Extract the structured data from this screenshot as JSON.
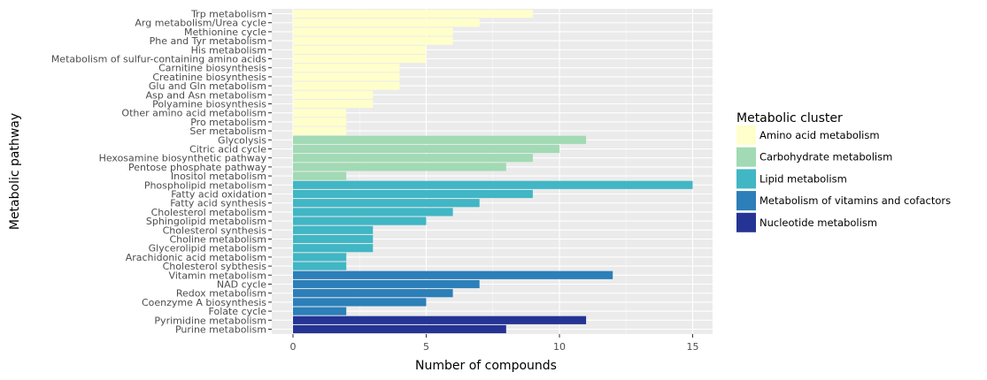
{
  "chart_data": {
    "type": "bar",
    "orientation": "horizontal",
    "xlabel": "Number of compounds",
    "ylabel": "Metabolic pathway",
    "xlim": [
      0,
      15.7
    ],
    "xticks": [
      0,
      5,
      10,
      15
    ],
    "grid": true,
    "legend": {
      "title": "Metabolic cluster",
      "placement": "right",
      "entries": [
        {
          "name": "Amino acid metabolism",
          "color": "#ffffcc"
        },
        {
          "name": "Carbohydrate metabolism",
          "color": "#a1dab4"
        },
        {
          "name": "Lipid metabolism",
          "color": "#41b6c4"
        },
        {
          "name": "Metabolism of vitamins and cofactors",
          "color": "#2c7fb8"
        },
        {
          "name": "Nucleotide metabolism",
          "color": "#253494"
        }
      ]
    },
    "categories": [
      "Trp metabolism",
      "Arg metabolism/Urea cycle",
      "Methionine cycle",
      "Phe and Tyr metabolism",
      "His metabolism",
      "Metabolism of sulfur-containing amino acids",
      "Carnitine biosynthesis",
      "Creatinine biosynthesis",
      "Glu and Gln metabolism",
      "Asp and Asn metabolism",
      "Polyamine biosynthesis",
      "Other amino acid metabolism",
      "Pro metabolism",
      "Ser metabolism",
      "Glycolysis",
      "Citric acid cycle",
      "Hexosamine biosynthetic pathway",
      "Pentose phosphate pathway",
      "Inositol metabolism",
      "Phospholipid metabolism",
      "Fatty acid oxidation",
      "Fatty acid synthesis",
      "Cholesterol metabolism",
      "Sphingolipid metabolism",
      "Cholesterol synthesis",
      "Choline metabolism",
      "Glycerolipid metabolism",
      "Arachidonic acid metabolism",
      "Cholesterol sybthesis",
      "Vitamin metabolism",
      "NAD cycle",
      "Redox metabolism",
      "Coenzyme A biosynthesis",
      "Folate cycle",
      "Pyrimidine metabolism",
      "Purine metabolism"
    ],
    "values": [
      9,
      7,
      6,
      6,
      5,
      5,
      4,
      4,
      4,
      3,
      3,
      2,
      2,
      2,
      11,
      10,
      9,
      8,
      2,
      15,
      9,
      7,
      6,
      5,
      3,
      3,
      3,
      2,
      2,
      12,
      7,
      6,
      5,
      2,
      11,
      8
    ],
    "clusters": [
      "Amino acid metabolism",
      "Amino acid metabolism",
      "Amino acid metabolism",
      "Amino acid metabolism",
      "Amino acid metabolism",
      "Amino acid metabolism",
      "Amino acid metabolism",
      "Amino acid metabolism",
      "Amino acid metabolism",
      "Amino acid metabolism",
      "Amino acid metabolism",
      "Amino acid metabolism",
      "Amino acid metabolism",
      "Amino acid metabolism",
      "Carbohydrate metabolism",
      "Carbohydrate metabolism",
      "Carbohydrate metabolism",
      "Carbohydrate metabolism",
      "Carbohydrate metabolism",
      "Lipid metabolism",
      "Lipid metabolism",
      "Lipid metabolism",
      "Lipid metabolism",
      "Lipid metabolism",
      "Lipid metabolism",
      "Lipid metabolism",
      "Lipid metabolism",
      "Lipid metabolism",
      "Lipid metabolism",
      "Metabolism of vitamins and cofactors",
      "Metabolism of vitamins and cofactors",
      "Metabolism of vitamins and cofactors",
      "Metabolism of vitamins and cofactors",
      "Metabolism of vitamins and cofactors",
      "Nucleotide metabolism",
      "Nucleotide metabolism"
    ]
  }
}
